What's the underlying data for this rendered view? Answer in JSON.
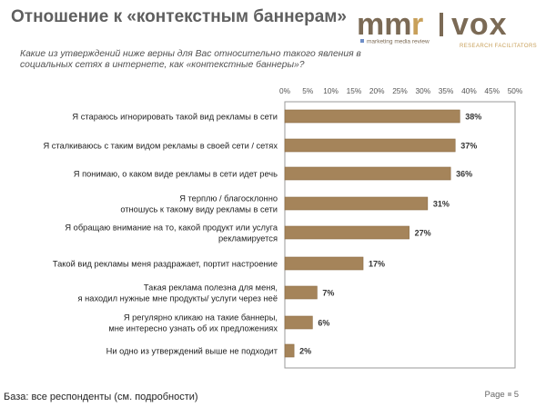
{
  "slide": {
    "title": "Отношение к «контекстным баннерам»",
    "question": "Какие из утверждений ниже верны для Вас относительно такого явления в социальных сетях в интернете, как «контекстные баннеры»?",
    "footer": "База: все респонденты (см. подробности)",
    "page_label": "Page",
    "page_number": "5"
  },
  "logo": {
    "text_left": "mm",
    "text_accent": "r",
    "text_right": "vox",
    "left_tagline": "marketing media review",
    "right_tagline": "RESEARCH FACILITATORS",
    "color_dark": "#7b6a55",
    "color_accent": "#c8a05a",
    "dot_color": "#6f8fc8"
  },
  "chart_data": {
    "type": "bar",
    "orientation": "horizontal",
    "categories": [
      [
        "Я стараюсь игнорировать такой вид рекламы в сети"
      ],
      [
        "Я сталкиваюсь с таким видом рекламы в своей сети / сетях"
      ],
      [
        "Я понимаю, о каком виде рекламы в сети идет речь"
      ],
      [
        "Я терплю / благосклонно",
        "отношусь к такому виду рекламы в сети"
      ],
      [
        "Я обращаю внимание на то, какой продукт или услуга",
        "рекламируется"
      ],
      [
        "Такой вид рекламы меня раздражает, портит настроение"
      ],
      [
        "Такая реклама полезна для меня,",
        "я находил нужные мне продукты/ услуги через неё"
      ],
      [
        "Я регулярно кликаю на такие баннеры,",
        "мне интересно узнать об их предложениях"
      ],
      [
        "Ни одно из утверждений выше не подходит"
      ]
    ],
    "values": [
      38,
      37,
      36,
      31,
      27,
      17,
      7,
      6,
      2
    ],
    "data_labels": [
      "38%",
      "37%",
      "36%",
      "31%",
      "27%",
      "17%",
      "7%",
      "6%",
      "2%"
    ],
    "xlim": [
      0,
      50
    ],
    "ticks": [
      0,
      5,
      10,
      15,
      20,
      25,
      30,
      35,
      40,
      45,
      50
    ],
    "tick_labels": [
      "0%",
      "5%",
      "10%",
      "15%",
      "20%",
      "25%",
      "30%",
      "35%",
      "40%",
      "45%",
      "50%"
    ],
    "grid": false,
    "bar_color": "#a5845a",
    "bar_edge_color": "#8a6a42",
    "plot_border_color": "#9a9a9a"
  }
}
